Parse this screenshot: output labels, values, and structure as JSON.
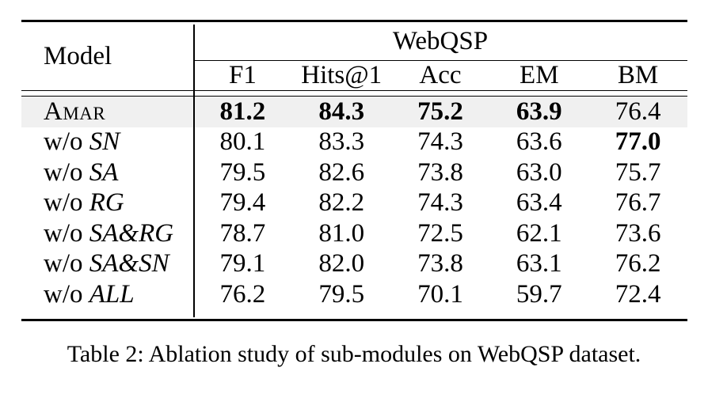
{
  "table": {
    "corner_header": "Model",
    "group_header": "WebQSP",
    "metric_columns": [
      "F1",
      "Hits@1",
      "Acc",
      "EM",
      "BM"
    ],
    "rows": [
      {
        "label_prefix": "",
        "label_term": "Amar",
        "term_style": "smallcaps",
        "highlight": true,
        "values": [
          "81.2",
          "84.3",
          "75.2",
          "63.9",
          "76.4"
        ],
        "bold": [
          true,
          true,
          true,
          true,
          false
        ]
      },
      {
        "label_prefix": "w/o ",
        "label_term": "SN",
        "term_style": "italic",
        "highlight": false,
        "values": [
          "80.1",
          "83.3",
          "74.3",
          "63.6",
          "77.0"
        ],
        "bold": [
          false,
          false,
          false,
          false,
          true
        ]
      },
      {
        "label_prefix": "w/o ",
        "label_term": "SA",
        "term_style": "italic",
        "highlight": false,
        "values": [
          "79.5",
          "82.6",
          "73.8",
          "63.0",
          "75.7"
        ],
        "bold": [
          false,
          false,
          false,
          false,
          false
        ]
      },
      {
        "label_prefix": "w/o ",
        "label_term": "RG",
        "term_style": "italic",
        "highlight": false,
        "values": [
          "79.4",
          "82.2",
          "74.3",
          "63.4",
          "76.7"
        ],
        "bold": [
          false,
          false,
          false,
          false,
          false
        ]
      },
      {
        "label_prefix": "w/o ",
        "label_term": "SA&RG",
        "term_style": "italic",
        "highlight": false,
        "values": [
          "78.7",
          "81.0",
          "72.5",
          "62.1",
          "73.6"
        ],
        "bold": [
          false,
          false,
          false,
          false,
          false
        ]
      },
      {
        "label_prefix": "w/o ",
        "label_term": "SA&SN",
        "term_style": "italic",
        "highlight": false,
        "values": [
          "79.1",
          "82.0",
          "73.8",
          "63.1",
          "76.2"
        ],
        "bold": [
          false,
          false,
          false,
          false,
          false
        ]
      },
      {
        "label_prefix": "w/o ",
        "label_term": "ALL",
        "term_style": "italic",
        "highlight": false,
        "values": [
          "76.2",
          "79.5",
          "70.1",
          "59.7",
          "72.4"
        ],
        "bold": [
          false,
          false,
          false,
          false,
          false
        ]
      }
    ]
  },
  "caption": "Table 2: Ablation study of sub-modules on WebQSP dataset.",
  "colors": {
    "highlight_row": "#f0f0f0",
    "rule": "#000000",
    "text": "#000000",
    "background": "#ffffff"
  },
  "chart_data": {
    "type": "table",
    "title": "Table 2: Ablation study of sub-modules on WebQSP dataset.",
    "group_header": "WebQSP",
    "columns": [
      "Model",
      "F1",
      "Hits@1",
      "Acc",
      "EM",
      "BM"
    ],
    "rows": [
      [
        "Amar",
        81.2,
        84.3,
        75.2,
        63.9,
        76.4
      ],
      [
        "w/o SN",
        80.1,
        83.3,
        74.3,
        63.6,
        77.0
      ],
      [
        "w/o SA",
        79.5,
        82.6,
        73.8,
        63.0,
        75.7
      ],
      [
        "w/o RG",
        79.4,
        82.2,
        74.3,
        63.4,
        76.7
      ],
      [
        "w/o SA&RG",
        78.7,
        81.0,
        72.5,
        62.1,
        73.6
      ],
      [
        "w/o SA&SN",
        79.1,
        82.0,
        73.8,
        63.1,
        76.2
      ],
      [
        "w/o ALL",
        76.2,
        79.5,
        70.1,
        59.7,
        72.4
      ]
    ]
  }
}
